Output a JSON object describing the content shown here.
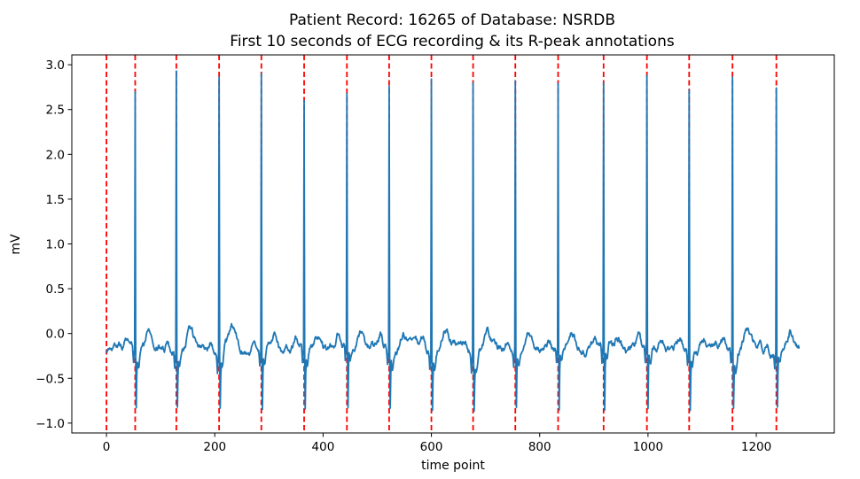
{
  "chart_data": {
    "type": "line",
    "title": "Patient Record: 16265 of Database: NSRDB",
    "subtitle": "First 10 seconds of ECG recording & its R-peak annotations",
    "xlabel": "time point",
    "ylabel": "mV",
    "xlim": [
      -64,
      1344
    ],
    "ylim": [
      -1.11,
      3.11
    ],
    "x_ticks": [
      0,
      200,
      400,
      600,
      800,
      1000,
      1200
    ],
    "x_tick_labels": [
      "0",
      "200",
      "400",
      "600",
      "800",
      "1000",
      "1200"
    ],
    "y_ticks": [
      -1.0,
      -0.5,
      0.0,
      0.5,
      1.0,
      1.5,
      2.0,
      2.5,
      3.0
    ],
    "y_tick_labels": [
      "−1.0",
      "−0.5",
      "0.0",
      "0.5",
      "1.0",
      "1.5",
      "2.0",
      "2.5",
      "3.0"
    ],
    "grid": false,
    "signal_color": "#1f77b4",
    "annotation_color": "#ff0000",
    "sample_count": 1280,
    "r_peaks": [
      {
        "x": 0,
        "amp": 0
      },
      {
        "x": 53,
        "amp": 2.7
      },
      {
        "x": 129,
        "amp": 2.93
      },
      {
        "x": 208,
        "amp": 2.86
      },
      {
        "x": 286,
        "amp": 2.9
      },
      {
        "x": 365,
        "amp": 2.6
      },
      {
        "x": 444,
        "amp": 2.68
      },
      {
        "x": 522,
        "amp": 2.76
      },
      {
        "x": 600,
        "amp": 2.84
      },
      {
        "x": 677,
        "amp": 2.8
      },
      {
        "x": 755,
        "amp": 2.82
      },
      {
        "x": 834,
        "amp": 2.79
      },
      {
        "x": 918,
        "amp": 2.8
      },
      {
        "x": 998,
        "amp": 2.88
      },
      {
        "x": 1076,
        "amp": 2.72
      },
      {
        "x": 1156,
        "amp": 2.86
      },
      {
        "x": 1237,
        "amp": 2.74
      }
    ]
  }
}
